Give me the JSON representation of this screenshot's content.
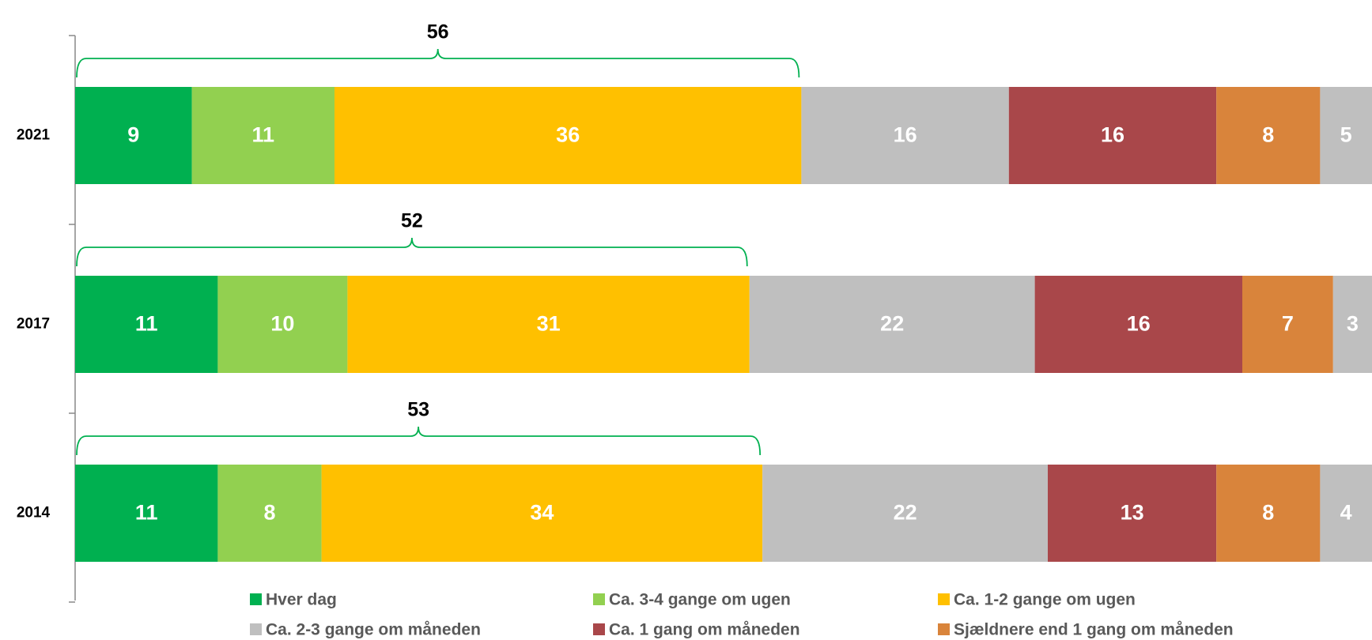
{
  "chart_data": {
    "type": "stacked-bar-horizontal",
    "categories": [
      "2021",
      "2017",
      "2014"
    ],
    "series": [
      {
        "name": "Hver dag",
        "color": "#00b050",
        "values": [
          9,
          11,
          11
        ]
      },
      {
        "name": "Ca. 3-4 gange om ugen",
        "color": "#92d050",
        "values": [
          11,
          10,
          8
        ]
      },
      {
        "name": "Ca. 1-2 gange om ugen",
        "color": "#ffc000",
        "values": [
          36,
          31,
          34
        ]
      },
      {
        "name": "Ca. 2-3 gange om måneden",
        "color": "#bfbfbf",
        "values": [
          16,
          22,
          22
        ]
      },
      {
        "name": "Ca. 1 gang om måneden",
        "color": "#a9474a",
        "values": [
          16,
          16,
          13
        ]
      },
      {
        "name": "Sjældnere end 1 gang om måneden",
        "color": "#d9843b",
        "values": [
          8,
          7,
          8
        ]
      },
      {
        "color": "#bfbfbf",
        "values": [
          5,
          3,
          4
        ]
      }
    ],
    "bracket_values": [
      56,
      52,
      53
    ],
    "xlim": [
      0,
      100
    ],
    "bracket_color": "#00b050"
  }
}
